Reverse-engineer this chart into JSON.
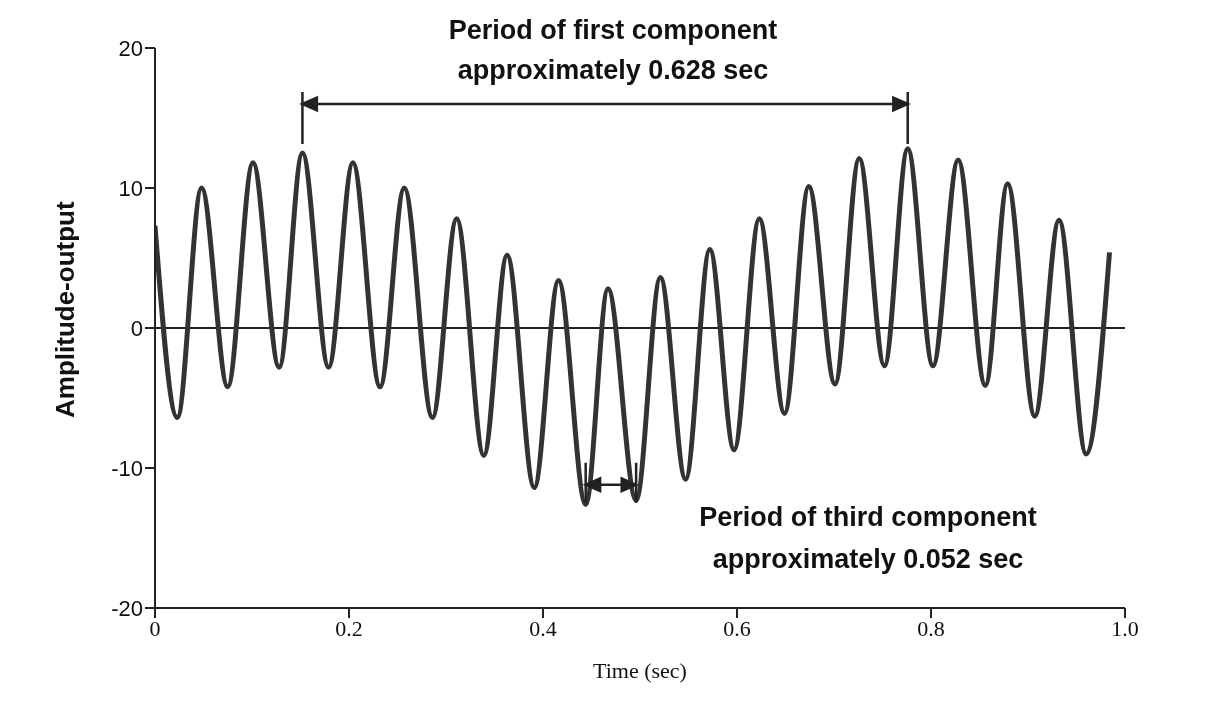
{
  "chart_data": {
    "type": "line",
    "xlabel": "Time (sec)",
    "ylabel": "Amplitude-output",
    "x": [
      0,
      0.023,
      0.048,
      0.075,
      0.101,
      0.128,
      0.152,
      0.179,
      0.204,
      0.232,
      0.257,
      0.286,
      0.311,
      0.339,
      0.363,
      0.391,
      0.416,
      0.444,
      0.467,
      0.496,
      0.521,
      0.547,
      0.572,
      0.597,
      0.623,
      0.649,
      0.674,
      0.701,
      0.726,
      0.752,
      0.776,
      0.802,
      0.828,
      0.856,
      0.879,
      0.907,
      0.932,
      0.96,
      0.984
    ],
    "values": [
      7.3,
      -6.4,
      10.0,
      -4.2,
      11.8,
      -2.8,
      12.5,
      -2.8,
      11.8,
      -4.2,
      10.0,
      -6.4,
      7.8,
      -9.1,
      5.2,
      -11.4,
      3.4,
      -12.6,
      2.8,
      -12.3,
      3.6,
      -10.8,
      5.6,
      -8.7,
      7.8,
      -6.1,
      10.1,
      -4.0,
      12.1,
      -2.7,
      12.8,
      -2.7,
      12.0,
      -4.1,
      10.3,
      -6.3,
      7.7,
      -9.0,
      5.4
    ],
    "color": "#333333",
    "marker": "none",
    "line_style": "solid",
    "grid": false,
    "legend": false,
    "xlim": [
      0,
      1.0
    ],
    "xticks": [
      0,
      0.2,
      0.4,
      0.6,
      0.8,
      {
        "value": 1,
        "label": "1.0"
      }
    ],
    "ylim": [
      -20,
      20
    ],
    "yticks": [
      -20,
      -10,
      0,
      10,
      20
    ],
    "ref_lines": [
      {
        "axis": "y",
        "value": 0
      }
    ],
    "annotations": [
      "Period of first component approximately 0.628 sec",
      "Period of third component approximately 0.052 sec"
    ]
  }
}
